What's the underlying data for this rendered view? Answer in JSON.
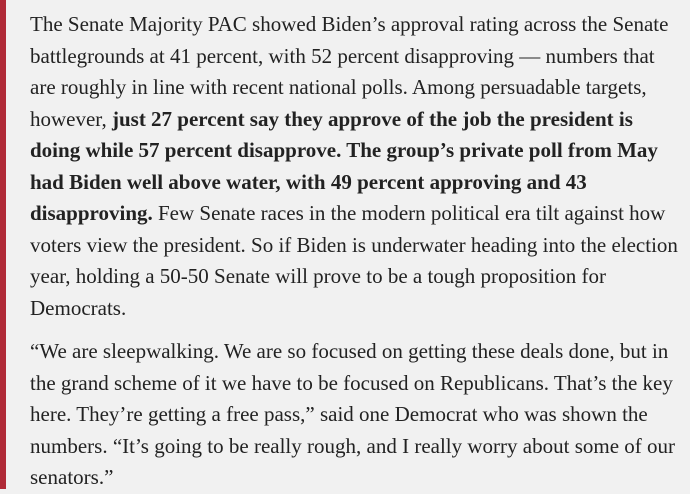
{
  "article": {
    "paragraph_1": {
      "text_1": "The Senate Majority PAC showed Biden’s approval rating across the Senate battlegrounds at 41 percent, with 52 percent disapproving — numbers that are roughly in line with recent national polls. Among persuadable targets, however, ",
      "bold": "just 27 percent say they approve of the job the president is doing while 57 percent disapprove. The group’s private poll from May had Biden well above water, with 49 percent approving and 43 disapproving.",
      "text_2": " Few Senate races in the modern political era tilt against how voters view the president. So if Biden is underwater heading into the election year, holding a 50-50 Senate will prove to be a tough proposition for Democrats."
    },
    "paragraph_2": {
      "text": "“We are sleepwalking. We are so focused on getting these deals done, but in the grand scheme of it we have to be focused on Republicans. That’s the key here. They’re getting a free pass,” said one Democrat who was shown the numbers. “It’s going to be really rough, and I really worry about some of our senators.”"
    }
  },
  "colors": {
    "background": "#f1f1f1",
    "quote_bar": "#b02a37",
    "text": "#222222"
  }
}
